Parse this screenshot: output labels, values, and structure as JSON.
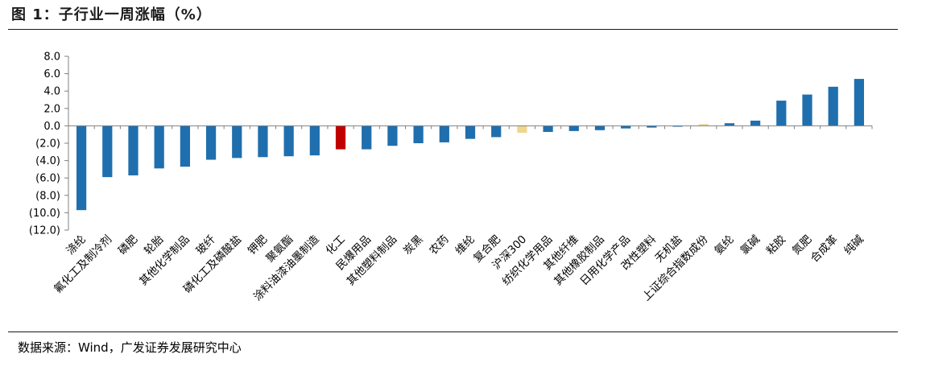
{
  "figure": {
    "title": "图 1：子行业一周涨幅（%）",
    "source": "数据来源：Wind，广发证券发展研究中心"
  },
  "colors": {
    "default": "#1f6fae",
    "chemical": "#c00000",
    "index": "#f0d58c",
    "axis": "#808080"
  },
  "chart_data": {
    "type": "bar",
    "title": "子行业一周涨幅（%）",
    "xlabel": "",
    "ylabel": "",
    "ylim": [
      -12,
      8
    ],
    "yticks": [
      8,
      6,
      4,
      2,
      0,
      -2,
      -4,
      -6,
      -8,
      -10,
      -12
    ],
    "ytick_labels": [
      "8.0",
      "6.0",
      "4.0",
      "2.0",
      "0.0",
      "(2.0)",
      "(4.0)",
      "(6.0)",
      "(8.0)",
      "(10.0)",
      "(12.0)"
    ],
    "grid": false,
    "legend": "none",
    "categories": [
      "涤纶",
      "氟化工及制冷剂",
      "磷肥",
      "轮胎",
      "其他化学制品",
      "玻纤",
      "磷化工及磷酸盐",
      "钾肥",
      "聚氨酯",
      "涂料油漆油墨制造",
      "化工",
      "民爆用品",
      "其他塑料制品",
      "炭黑",
      "农药",
      "维纶",
      "复合肥",
      "沪深300",
      "纺织化学用品",
      "其他纤维",
      "其他橡胶制品",
      "日用化学产品",
      "改性塑料",
      "无机盐",
      "上证综合指数成份",
      "氨纶",
      "氯碱",
      "粘胶",
      "氮肥",
      "合成革",
      "纯碱"
    ],
    "values": [
      -9.7,
      -5.9,
      -5.7,
      -4.9,
      -4.7,
      -3.9,
      -3.7,
      -3.6,
      -3.5,
      -3.4,
      -2.7,
      -2.7,
      -2.3,
      -2.0,
      -1.9,
      -1.5,
      -1.3,
      -0.8,
      -0.7,
      -0.6,
      -0.5,
      -0.3,
      -0.2,
      -0.1,
      0.2,
      0.3,
      0.6,
      2.9,
      3.6,
      4.5,
      5.4
    ],
    "highlights": {
      "化工": "chemical",
      "沪深300": "index",
      "上证综合指数成份": "index"
    }
  }
}
